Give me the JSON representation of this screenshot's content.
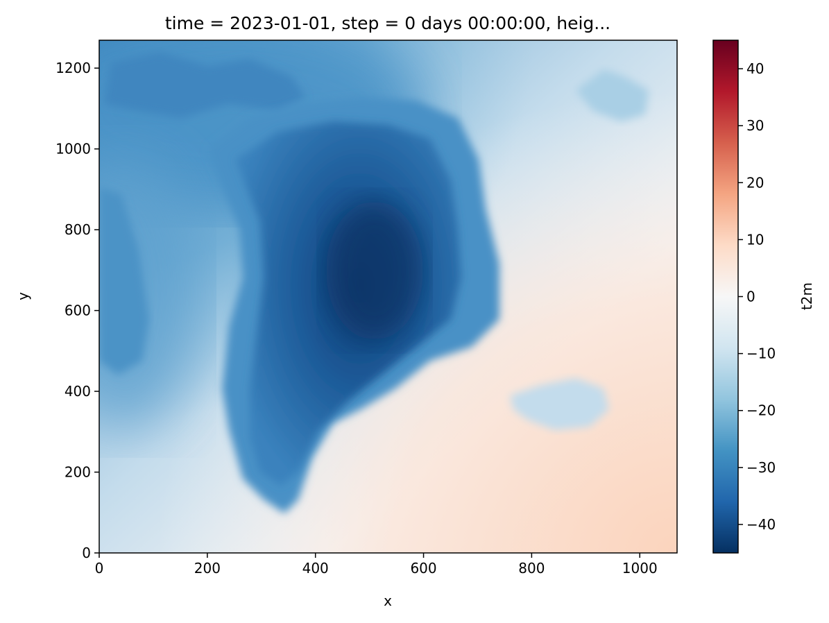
{
  "chart_data": {
    "type": "heatmap",
    "title": "time = 2023-01-01, step = 0 days 00:00:00, heig...",
    "xlabel": "x",
    "ylabel": "y",
    "xlim": [
      0,
      1069
    ],
    "ylim": [
      0,
      1269
    ],
    "xticks": [
      0,
      200,
      400,
      600,
      800,
      1000
    ],
    "yticks": [
      0,
      200,
      400,
      600,
      800,
      1000,
      1200
    ],
    "colorbar": {
      "label": "t2m",
      "range": [
        -45,
        45
      ],
      "ticks": [
        40,
        30,
        20,
        10,
        0,
        -10,
        -20,
        -30,
        -40
      ],
      "tick_labels": [
        "40",
        "30",
        "20",
        "10",
        "0",
        "−10",
        "−20",
        "−30",
        "−40"
      ],
      "colormap": "RdBu_r",
      "stops": [
        "#053061",
        "#2166ac",
        "#4393c3",
        "#92c5de",
        "#d1e5f0",
        "#f7f7f7",
        "#fddbc7",
        "#f4a582",
        "#d6604d",
        "#b2182b",
        "#67001f"
      ]
    },
    "approx_values": {
      "ice_sheet_center": -42,
      "greenland_coast": -25,
      "ellesmere_region": -30,
      "open_ocean_north": -15,
      "ocean_southwest": -5,
      "ocean_southeast": 5,
      "iceland": -12,
      "svalbard": -12
    }
  }
}
